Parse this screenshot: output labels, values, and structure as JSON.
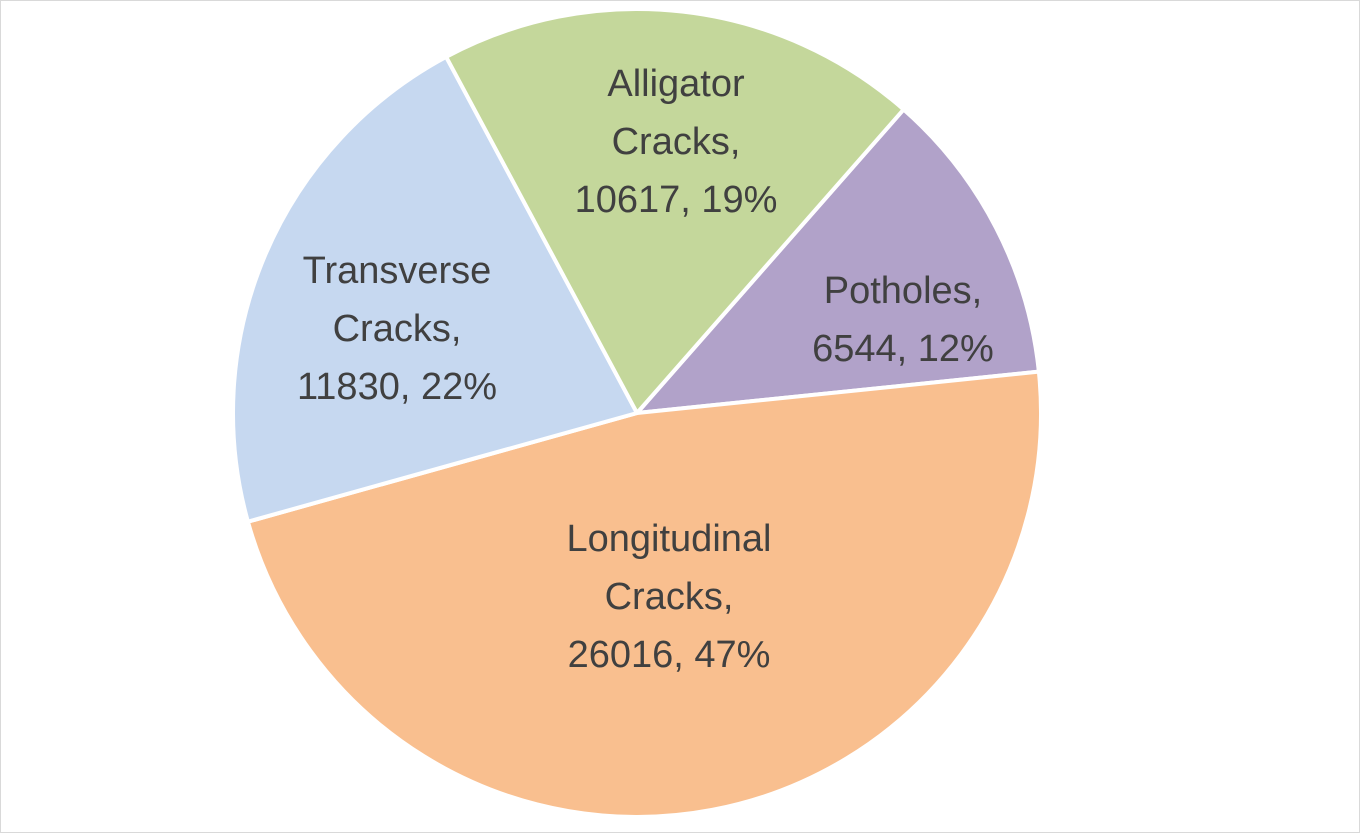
{
  "chart_data": {
    "type": "pie",
    "title": "",
    "slices": [
      {
        "name": "Potholes",
        "value": 6544,
        "percent": "12%",
        "color": "#b1a2c9",
        "label_lines": [
          "Potholes,",
          "6544, 12%"
        ]
      },
      {
        "name": "Longitudinal Cracks",
        "value": 26016,
        "percent": "47%",
        "color": "#f9bf8f",
        "label_lines": [
          "Longitudinal",
          "Cracks,",
          "26016, 47%"
        ]
      },
      {
        "name": "Transverse Cracks",
        "value": 11830,
        "percent": "22%",
        "color": "#c6d8f0",
        "label_lines": [
          "Transverse",
          "Cracks,",
          "11830, 22%"
        ]
      },
      {
        "name": "Alligator Cracks",
        "value": 10617,
        "percent": "19%",
        "color": "#c4d79b",
        "label_lines": [
          "Alligator",
          "Cracks,",
          "10617, 19%"
        ]
      }
    ],
    "legend": "none",
    "start_angle_deg": 41.3
  }
}
